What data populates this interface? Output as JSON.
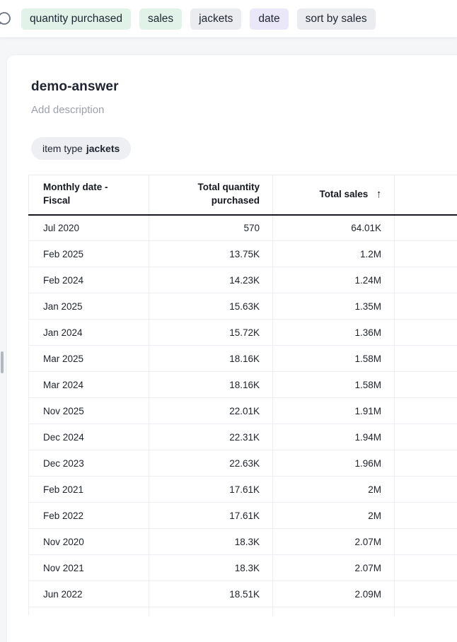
{
  "search_bar": {
    "icon": "search-icon",
    "tokens": [
      {
        "label": "quantity purchased",
        "type": "green"
      },
      {
        "label": "sales",
        "type": "green"
      },
      {
        "label": "jackets",
        "type": "gray"
      },
      {
        "label": "date",
        "type": "purple"
      },
      {
        "label": "sort by sales",
        "type": "gray"
      }
    ]
  },
  "answer": {
    "title": "demo-answer",
    "description_placeholder": "Add description",
    "filter": {
      "prefix": "item type",
      "value": "jackets"
    }
  },
  "table": {
    "sort_arrow": "↑",
    "columns": [
      {
        "label": "Monthly date - Fiscal",
        "align": "left",
        "sort": null
      },
      {
        "label": "Total quantity purchased",
        "align": "right",
        "sort": null
      },
      {
        "label": "Total sales",
        "align": "right",
        "sort": "asc"
      },
      {
        "label": "",
        "align": "left",
        "sort": null
      }
    ],
    "rows": [
      {
        "date": "Jul 2020",
        "quantity": "570",
        "sales": "64.01K"
      },
      {
        "date": "Feb 2025",
        "quantity": "13.75K",
        "sales": "1.2M"
      },
      {
        "date": "Feb 2024",
        "quantity": "14.23K",
        "sales": "1.24M"
      },
      {
        "date": "Jan 2025",
        "quantity": "15.63K",
        "sales": "1.35M"
      },
      {
        "date": "Jan 2024",
        "quantity": "15.72K",
        "sales": "1.36M"
      },
      {
        "date": "Mar 2025",
        "quantity": "18.16K",
        "sales": "1.58M"
      },
      {
        "date": "Mar 2024",
        "quantity": "18.16K",
        "sales": "1.58M"
      },
      {
        "date": "Nov 2025",
        "quantity": "22.01K",
        "sales": "1.91M"
      },
      {
        "date": "Dec 2024",
        "quantity": "22.31K",
        "sales": "1.94M"
      },
      {
        "date": "Dec 2023",
        "quantity": "22.63K",
        "sales": "1.96M"
      },
      {
        "date": "Feb 2021",
        "quantity": "17.61K",
        "sales": "2M"
      },
      {
        "date": "Feb 2022",
        "quantity": "17.61K",
        "sales": "2M"
      },
      {
        "date": "Nov 2020",
        "quantity": "18.3K",
        "sales": "2.07M"
      },
      {
        "date": "Nov 2021",
        "quantity": "18.3K",
        "sales": "2.07M"
      },
      {
        "date": "Jun 2022",
        "quantity": "18.51K",
        "sales": "2.09M"
      }
    ]
  },
  "colors": {
    "page_background": "#f4f6f8",
    "chip_green": "#e1f3e9",
    "chip_gray": "#eaecf0",
    "chip_purple": "#eae7f9",
    "header_underline": "#15181f",
    "grid_border": "#eceef3",
    "muted_text": "#9aa1ad"
  }
}
